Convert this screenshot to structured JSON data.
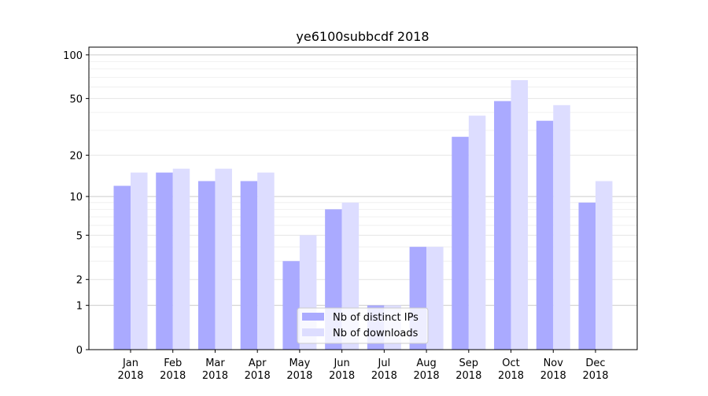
{
  "chart_data": {
    "type": "bar",
    "title": "ye6100subbcdf 2018",
    "xlabel": "",
    "ylabel": "",
    "yscale": "symlog",
    "ylim": [
      0,
      113
    ],
    "yticks": [
      0,
      1,
      2,
      5,
      10,
      20,
      50,
      100
    ],
    "grid": true,
    "legend_position": "bottom-center",
    "categories": [
      "Jan\n2018",
      "Feb\n2018",
      "Mar\n2018",
      "Apr\n2018",
      "May\n2018",
      "Jun\n2018",
      "Jul\n2018",
      "Aug\n2018",
      "Sep\n2018",
      "Oct\n2018",
      "Nov\n2018",
      "Dec\n2018"
    ],
    "series": [
      {
        "name": "Nb of distinct IPs",
        "color": "#aaaaff",
        "values": [
          12,
          15,
          13,
          13,
          3,
          8,
          1,
          4,
          27,
          48,
          35,
          9
        ]
      },
      {
        "name": "Nb of downloads",
        "color": "#ddddff",
        "values": [
          15,
          16,
          16,
          15,
          5,
          9,
          1,
          4,
          38,
          67,
          45,
          13
        ]
      }
    ]
  }
}
